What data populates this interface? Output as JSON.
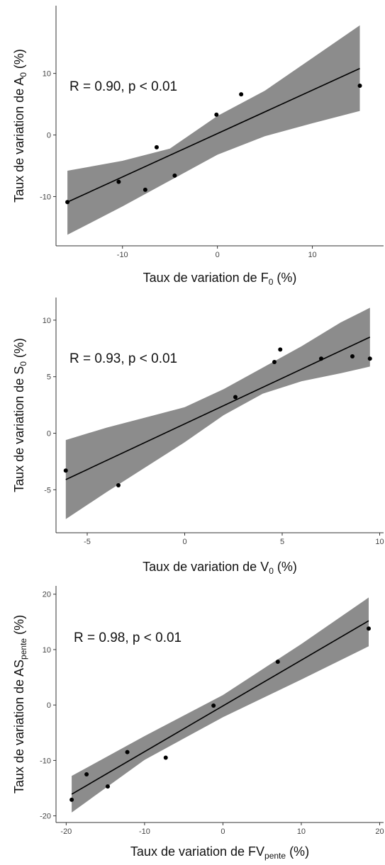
{
  "chart_data": [
    {
      "type": "scatter",
      "xlabel": {
        "main": "Taux de variation de F",
        "sub": "0",
        "unit": " (%)"
      },
      "ylabel": {
        "main": "Taux de variation de A",
        "sub": "0",
        "unit": " (%)"
      },
      "annotation": "R = 0.90, p < 0.01",
      "xlim": [
        -17,
        17.5
      ],
      "ylim": [
        -18,
        21
      ],
      "xticks": [
        -10,
        0,
        10
      ],
      "yticks": [
        -10,
        0,
        10
      ],
      "grid": false,
      "series": [
        {
          "values": [
            {
              "x": -15.8,
              "y": -10.9
            },
            {
              "x": -10.4,
              "y": -7.6
            },
            {
              "x": -7.6,
              "y": -8.9
            },
            {
              "x": -6.4,
              "y": -2.0
            },
            {
              "x": -4.5,
              "y": -6.6
            },
            {
              "x": -0.1,
              "y": 3.3
            },
            {
              "x": 2.5,
              "y": 6.6
            },
            {
              "x": 15.0,
              "y": 8.0
            }
          ]
        }
      ],
      "fit": {
        "x": [
          -15.8,
          15.0
        ],
        "y": [
          -10.9,
          10.8
        ]
      },
      "band": {
        "x": [
          -15.8,
          -10,
          -5,
          0,
          5,
          10,
          15.0
        ],
        "lower": [
          -16.2,
          -11.6,
          -7.4,
          -3.2,
          -0.2,
          1.9,
          3.9
        ],
        "upper": [
          -5.8,
          -4.2,
          -2.2,
          3.1,
          7.2,
          12.5,
          17.8
        ]
      },
      "colors": {
        "band": "#8c8c8c",
        "line": "#000000",
        "points": "#000000"
      }
    },
    {
      "type": "scatter",
      "xlabel": {
        "main": "Taux de variation de V",
        "sub": "0",
        "unit": " (%)"
      },
      "ylabel": {
        "main": "Taux de variation de S",
        "sub": "0",
        "unit": " (%)"
      },
      "annotation": "R = 0.93, p < 0.01",
      "xlim": [
        -6.6,
        10.2
      ],
      "ylim": [
        -8.8,
        12.0
      ],
      "xticks": [
        -5,
        0,
        5,
        10
      ],
      "yticks": [
        -5,
        0,
        5,
        10
      ],
      "grid": false,
      "series": [
        {
          "values": [
            {
              "x": -6.1,
              "y": -3.3
            },
            {
              "x": -3.4,
              "y": -4.6
            },
            {
              "x": 2.6,
              "y": 3.2
            },
            {
              "x": 4.6,
              "y": 6.3
            },
            {
              "x": 4.9,
              "y": 7.4
            },
            {
              "x": 7.0,
              "y": 6.6
            },
            {
              "x": 8.6,
              "y": 6.8
            },
            {
              "x": 9.5,
              "y": 6.6
            }
          ]
        }
      ],
      "fit": {
        "x": [
          -6.1,
          9.5
        ],
        "y": [
          -4.1,
          8.5
        ]
      },
      "band": {
        "x": [
          -6.1,
          -4,
          -2,
          0,
          2,
          4,
          6,
          8,
          9.5
        ],
        "lower": [
          -7.6,
          -5.2,
          -3.0,
          -0.8,
          1.6,
          3.5,
          4.6,
          5.3,
          5.9
        ],
        "upper": [
          -0.6,
          0.5,
          1.4,
          2.3,
          3.9,
          5.8,
          7.7,
          9.8,
          11.1
        ]
      },
      "colors": {
        "band": "#8c8c8c",
        "line": "#000000",
        "points": "#000000"
      }
    },
    {
      "type": "scatter",
      "xlabel": {
        "main": "Taux de variation de FV",
        "sub": "pente",
        "unit": " (%)"
      },
      "ylabel": {
        "main": "Taux de variation de AS",
        "sub": "pente",
        "unit": " (%)"
      },
      "annotation": "R = 0.98, p < 0.01",
      "xlim": [
        -21.3,
        20.5
      ],
      "ylim": [
        -21.2,
        21.5
      ],
      "xticks": [
        -20,
        -10,
        0,
        10,
        20
      ],
      "yticks": [
        -20,
        -10,
        0,
        10,
        20
      ],
      "grid": false,
      "series": [
        {
          "values": [
            {
              "x": -19.3,
              "y": -17.1
            },
            {
              "x": -17.4,
              "y": -12.5
            },
            {
              "x": -14.7,
              "y": -14.7
            },
            {
              "x": -12.2,
              "y": -8.5
            },
            {
              "x": -7.3,
              "y": -9.5
            },
            {
              "x": -1.2,
              "y": -0.1
            },
            {
              "x": 7.0,
              "y": 7.8
            },
            {
              "x": 18.6,
              "y": 13.8
            }
          ]
        }
      ],
      "fit": {
        "x": [
          -19.3,
          18.6
        ],
        "y": [
          -16.1,
          15.2
        ]
      },
      "band": {
        "x": [
          -19.3,
          -10,
          0,
          10,
          18.6
        ],
        "lower": [
          -19.4,
          -9.9,
          -2.2,
          4.6,
          10.6
        ],
        "upper": [
          -12.8,
          -5.6,
          1.8,
          11.0,
          19.4
        ]
      },
      "colors": {
        "band": "#8c8c8c",
        "line": "#000000",
        "points": "#000000"
      }
    }
  ]
}
